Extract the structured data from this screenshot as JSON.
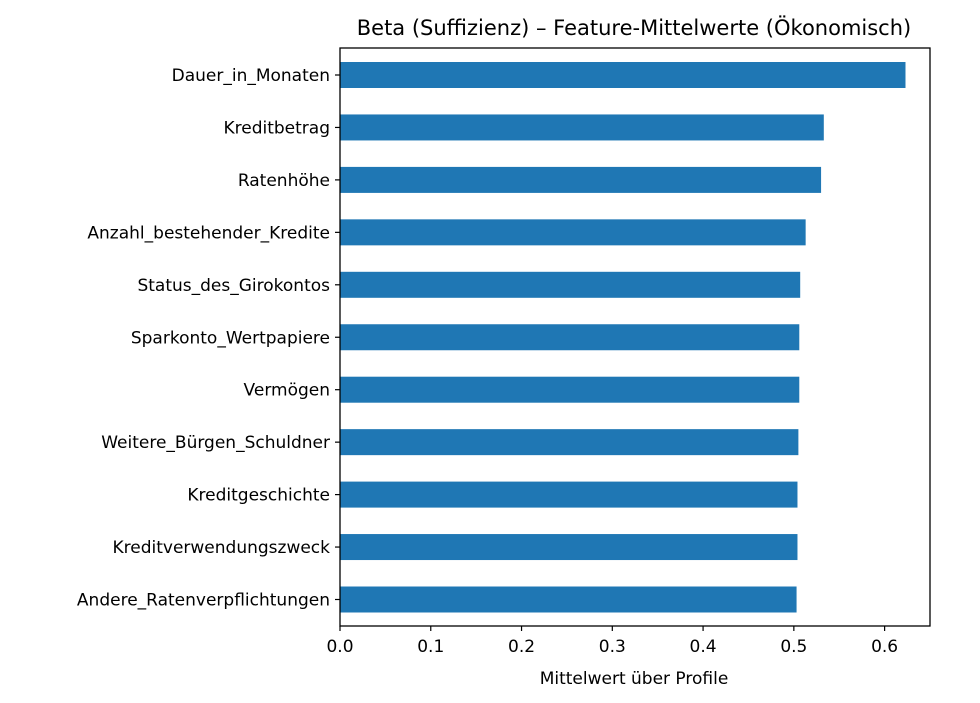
{
  "chart_data": {
    "type": "bar",
    "orientation": "horizontal",
    "title": "Beta (Suffizienz) – Feature-Mittelwerte (Ökonomisch)",
    "xlabel": "Mittelwert über Profile",
    "ylabel": "",
    "xlim": [
      0,
      0.65
    ],
    "xticks": [
      "0.0",
      "0.1",
      "0.2",
      "0.3",
      "0.4",
      "0.5",
      "0.6"
    ],
    "grid": false,
    "bar_color": "#1f77b4",
    "categories": [
      "Dauer_in_Monaten",
      "Kreditbetrag",
      "Ratenhöhe",
      "Anzahl_bestehender_Kredite",
      "Status_des_Girokontos",
      "Sparkonto_Wertpapiere",
      "Vermögen",
      "Weitere_Bürgen_Schuldner",
      "Kreditgeschichte",
      "Kreditverwendungszweck",
      "Andere_Ratenverpflichtungen"
    ],
    "values": [
      0.623,
      0.533,
      0.53,
      0.513,
      0.507,
      0.506,
      0.506,
      0.505,
      0.504,
      0.504,
      0.503
    ]
  }
}
